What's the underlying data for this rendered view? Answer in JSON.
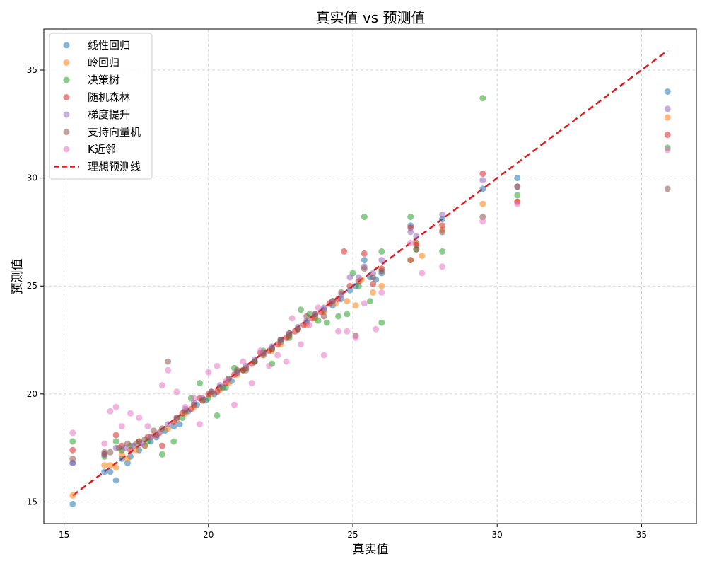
{
  "chart_data": {
    "type": "scatter",
    "title": "真实值 vs 预测值",
    "xlabel": "真实值",
    "ylabel": "预测值",
    "xlim": [
      14.3,
      36.9
    ],
    "ylim": [
      14.0,
      36.9
    ],
    "x_ticks": [
      15,
      20,
      25,
      30,
      35
    ],
    "y_ticks": [
      15,
      20,
      25,
      30,
      35
    ],
    "grid": true,
    "grid_style": "dashed",
    "legend_position": "top-left",
    "reference_line": {
      "name": "理想预测线",
      "from": [
        15.3,
        15.3
      ],
      "to": [
        35.9,
        35.9
      ],
      "color": "#e41a1c",
      "style": "dashed"
    },
    "series": [
      {
        "name": "线性回归",
        "color": "#1f77b4",
        "points": [
          [
            15.3,
            14.9
          ],
          [
            15.3,
            16.8
          ],
          [
            16.4,
            16.4
          ],
          [
            16.6,
            16.4
          ],
          [
            16.8,
            16.0
          ],
          [
            17.0,
            17.0
          ],
          [
            17.2,
            16.8
          ],
          [
            17.3,
            17.1
          ],
          [
            17.6,
            17.4
          ],
          [
            17.8,
            17.6
          ],
          [
            18.0,
            17.8
          ],
          [
            18.2,
            18.0
          ],
          [
            18.5,
            18.3
          ],
          [
            18.8,
            18.5
          ],
          [
            19.0,
            18.6
          ],
          [
            19.3,
            19.2
          ],
          [
            19.6,
            19.5
          ],
          [
            19.9,
            19.7
          ],
          [
            20.2,
            20.0
          ],
          [
            20.5,
            20.3
          ],
          [
            20.8,
            20.6
          ],
          [
            21.0,
            21.0
          ],
          [
            21.3,
            21.2
          ],
          [
            21.6,
            21.5
          ],
          [
            21.9,
            21.8
          ],
          [
            22.2,
            22.1
          ],
          [
            22.5,
            22.4
          ],
          [
            22.8,
            22.7
          ],
          [
            23.1,
            23.0
          ],
          [
            23.4,
            23.3
          ],
          [
            23.7,
            23.6
          ],
          [
            24.0,
            23.9
          ],
          [
            24.3,
            24.1
          ],
          [
            24.6,
            24.4
          ],
          [
            24.9,
            24.8
          ],
          [
            25.1,
            25.0
          ],
          [
            25.4,
            26.2
          ],
          [
            25.6,
            25.4
          ],
          [
            25.8,
            25.3
          ],
          [
            26.0,
            25.6
          ],
          [
            27.0,
            27.8
          ],
          [
            27.2,
            27.0
          ],
          [
            28.1,
            28.1
          ],
          [
            29.5,
            29.5
          ],
          [
            30.7,
            30.0
          ],
          [
            35.9,
            34.0
          ]
        ]
      },
      {
        "name": "岭回归",
        "color": "#ff7f0e",
        "points": [
          [
            15.3,
            15.3
          ],
          [
            16.4,
            16.7
          ],
          [
            16.6,
            16.7
          ],
          [
            16.8,
            16.6
          ],
          [
            17.0,
            17.2
          ],
          [
            17.2,
            17.0
          ],
          [
            17.5,
            17.4
          ],
          [
            17.8,
            17.6
          ],
          [
            18.0,
            18.0
          ],
          [
            18.3,
            18.2
          ],
          [
            18.6,
            18.4
          ],
          [
            18.9,
            18.8
          ],
          [
            19.2,
            19.1
          ],
          [
            19.5,
            19.4
          ],
          [
            19.8,
            19.7
          ],
          [
            20.1,
            20.0
          ],
          [
            20.4,
            20.2
          ],
          [
            20.7,
            20.5
          ],
          [
            21.0,
            20.9
          ],
          [
            21.3,
            21.2
          ],
          [
            21.6,
            21.5
          ],
          [
            21.9,
            21.8
          ],
          [
            22.2,
            22.0
          ],
          [
            22.5,
            22.3
          ],
          [
            22.8,
            22.7
          ],
          [
            23.1,
            23.0
          ],
          [
            23.4,
            23.2
          ],
          [
            23.7,
            23.5
          ],
          [
            24.0,
            23.8
          ],
          [
            24.4,
            24.2
          ],
          [
            24.8,
            24.3
          ],
          [
            25.1,
            24.1
          ],
          [
            25.3,
            25.3
          ],
          [
            25.7,
            24.7
          ],
          [
            26.0,
            25.0
          ],
          [
            27.0,
            26.2
          ],
          [
            27.2,
            27.0
          ],
          [
            27.4,
            26.4
          ],
          [
            28.1,
            27.6
          ],
          [
            29.5,
            28.8
          ],
          [
            30.7,
            28.9
          ],
          [
            35.9,
            32.8
          ]
        ]
      },
      {
        "name": "决策树",
        "color": "#2ca02c",
        "points": [
          [
            15.3,
            17.8
          ],
          [
            16.4,
            17.1
          ],
          [
            16.8,
            17.8
          ],
          [
            17.0,
            17.4
          ],
          [
            17.3,
            17.6
          ],
          [
            17.6,
            17.8
          ],
          [
            17.9,
            17.8
          ],
          [
            18.4,
            17.2
          ],
          [
            18.8,
            17.8
          ],
          [
            19.1,
            18.9
          ],
          [
            19.4,
            19.8
          ],
          [
            19.7,
            20.5
          ],
          [
            20.0,
            19.8
          ],
          [
            20.3,
            19.0
          ],
          [
            20.6,
            20.3
          ],
          [
            20.9,
            21.2
          ],
          [
            21.2,
            21.1
          ],
          [
            21.6,
            21.5
          ],
          [
            21.9,
            22.0
          ],
          [
            22.2,
            21.4
          ],
          [
            22.5,
            22.5
          ],
          [
            22.8,
            22.6
          ],
          [
            23.2,
            23.9
          ],
          [
            23.5,
            23.7
          ],
          [
            23.8,
            23.4
          ],
          [
            24.1,
            23.3
          ],
          [
            24.5,
            23.6
          ],
          [
            24.8,
            23.7
          ],
          [
            25.0,
            25.6
          ],
          [
            25.2,
            25.0
          ],
          [
            25.4,
            28.2
          ],
          [
            25.6,
            24.3
          ],
          [
            26.0,
            23.3
          ],
          [
            26.0,
            26.6
          ],
          [
            27.0,
            28.2
          ],
          [
            27.2,
            26.7
          ],
          [
            28.1,
            26.6
          ],
          [
            29.5,
            33.7
          ],
          [
            30.7,
            29.2
          ],
          [
            35.9,
            31.4
          ]
        ]
      },
      {
        "name": "随机森林",
        "color": "#d62728",
        "points": [
          [
            15.3,
            17.4
          ],
          [
            16.4,
            17.2
          ],
          [
            16.8,
            18.1
          ],
          [
            17.0,
            17.6
          ],
          [
            17.3,
            17.4
          ],
          [
            17.6,
            17.8
          ],
          [
            17.9,
            18.0
          ],
          [
            18.2,
            18.1
          ],
          [
            18.4,
            17.6
          ],
          [
            18.8,
            18.7
          ],
          [
            19.1,
            19.1
          ],
          [
            19.4,
            19.3
          ],
          [
            19.7,
            19.8
          ],
          [
            20.0,
            20.0
          ],
          [
            20.3,
            20.1
          ],
          [
            20.6,
            20.5
          ],
          [
            20.9,
            20.9
          ],
          [
            21.2,
            21.1
          ],
          [
            21.5,
            21.4
          ],
          [
            21.8,
            21.9
          ],
          [
            22.1,
            22.0
          ],
          [
            22.4,
            22.3
          ],
          [
            22.7,
            22.6
          ],
          [
            23.0,
            22.9
          ],
          [
            23.3,
            23.2
          ],
          [
            23.6,
            23.5
          ],
          [
            23.9,
            23.8
          ],
          [
            24.2,
            24.2
          ],
          [
            24.5,
            24.4
          ],
          [
            24.7,
            26.6
          ],
          [
            24.9,
            25.0
          ],
          [
            25.2,
            25.2
          ],
          [
            25.4,
            26.5
          ],
          [
            25.7,
            25.1
          ],
          [
            26.0,
            25.8
          ],
          [
            27.0,
            27.7
          ],
          [
            27.2,
            26.9
          ],
          [
            28.1,
            27.8
          ],
          [
            29.5,
            30.2
          ],
          [
            30.7,
            28.9
          ],
          [
            35.9,
            32.0
          ]
        ]
      },
      {
        "name": "梯度提升",
        "color": "#9467bd",
        "points": [
          [
            15.3,
            16.8
          ],
          [
            16.4,
            17.2
          ],
          [
            16.8,
            17.5
          ],
          [
            17.1,
            17.5
          ],
          [
            17.4,
            17.6
          ],
          [
            17.7,
            17.7
          ],
          [
            18.0,
            18.0
          ],
          [
            18.3,
            18.2
          ],
          [
            18.6,
            18.6
          ],
          [
            18.9,
            18.9
          ],
          [
            19.2,
            19.3
          ],
          [
            19.5,
            19.6
          ],
          [
            19.8,
            19.8
          ],
          [
            20.1,
            20.1
          ],
          [
            20.4,
            20.4
          ],
          [
            20.7,
            20.7
          ],
          [
            21.0,
            21.0
          ],
          [
            21.3,
            21.3
          ],
          [
            21.6,
            21.6
          ],
          [
            21.9,
            21.9
          ],
          [
            22.2,
            22.2
          ],
          [
            22.5,
            22.5
          ],
          [
            22.8,
            22.8
          ],
          [
            23.1,
            23.1
          ],
          [
            23.4,
            23.4
          ],
          [
            23.7,
            23.7
          ],
          [
            24.0,
            24.0
          ],
          [
            24.3,
            24.3
          ],
          [
            24.6,
            24.6
          ],
          [
            24.9,
            25.4
          ],
          [
            25.2,
            25.4
          ],
          [
            25.4,
            25.9
          ],
          [
            25.7,
            25.6
          ],
          [
            26.0,
            26.2
          ],
          [
            27.0,
            27.5
          ],
          [
            27.2,
            27.3
          ],
          [
            28.1,
            28.3
          ],
          [
            29.5,
            29.9
          ],
          [
            30.7,
            29.6
          ],
          [
            35.9,
            33.2
          ]
        ]
      },
      {
        "name": "支持向量机",
        "color": "#8c564b",
        "points": [
          [
            15.3,
            17.0
          ],
          [
            16.4,
            17.3
          ],
          [
            16.6,
            17.3
          ],
          [
            16.9,
            17.5
          ],
          [
            17.2,
            17.7
          ],
          [
            17.5,
            17.7
          ],
          [
            17.8,
            17.9
          ],
          [
            18.1,
            18.3
          ],
          [
            18.4,
            18.4
          ],
          [
            18.6,
            21.5
          ],
          [
            18.9,
            18.9
          ],
          [
            19.2,
            19.2
          ],
          [
            19.5,
            19.5
          ],
          [
            19.8,
            19.7
          ],
          [
            20.1,
            20.1
          ],
          [
            20.4,
            20.3
          ],
          [
            20.7,
            20.7
          ],
          [
            21.0,
            21.1
          ],
          [
            21.3,
            21.1
          ],
          [
            21.6,
            21.5
          ],
          [
            21.9,
            21.9
          ],
          [
            22.2,
            22.1
          ],
          [
            22.5,
            22.5
          ],
          [
            22.8,
            22.8
          ],
          [
            23.1,
            23.0
          ],
          [
            23.4,
            23.6
          ],
          [
            23.7,
            23.7
          ],
          [
            24.0,
            23.6
          ],
          [
            24.3,
            24.3
          ],
          [
            24.6,
            24.7
          ],
          [
            25.1,
            22.7
          ],
          [
            25.4,
            25.8
          ],
          [
            25.7,
            25.4
          ],
          [
            26.0,
            25.7
          ],
          [
            27.0,
            26.2
          ],
          [
            27.2,
            26.7
          ],
          [
            28.1,
            27.5
          ],
          [
            29.5,
            28.2
          ],
          [
            30.7,
            29.6
          ],
          [
            35.9,
            29.5
          ]
        ]
      },
      {
        "name": "K近邻",
        "color": "#e377c2",
        "points": [
          [
            15.3,
            18.2
          ],
          [
            16.4,
            17.7
          ],
          [
            16.6,
            19.2
          ],
          [
            16.8,
            19.4
          ],
          [
            17.0,
            18.5
          ],
          [
            17.3,
            19.1
          ],
          [
            17.6,
            18.9
          ],
          [
            17.9,
            18.5
          ],
          [
            18.4,
            20.4
          ],
          [
            18.6,
            21.1
          ],
          [
            18.9,
            20.1
          ],
          [
            19.2,
            19.4
          ],
          [
            19.5,
            19.8
          ],
          [
            19.7,
            18.6
          ],
          [
            20.0,
            21.0
          ],
          [
            20.3,
            21.3
          ],
          [
            20.6,
            20.6
          ],
          [
            20.9,
            19.5
          ],
          [
            21.2,
            21.5
          ],
          [
            21.5,
            20.5
          ],
          [
            21.8,
            22.0
          ],
          [
            22.1,
            21.3
          ],
          [
            22.4,
            21.8
          ],
          [
            22.7,
            21.5
          ],
          [
            22.9,
            23.5
          ],
          [
            23.2,
            22.3
          ],
          [
            23.5,
            23.2
          ],
          [
            23.8,
            24.0
          ],
          [
            24.0,
            21.8
          ],
          [
            24.5,
            22.9
          ],
          [
            24.8,
            22.9
          ],
          [
            25.1,
            22.6
          ],
          [
            25.4,
            24.2
          ],
          [
            25.8,
            23.0
          ],
          [
            26.0,
            24.7
          ],
          [
            27.0,
            27.0
          ],
          [
            27.4,
            25.6
          ],
          [
            28.1,
            25.9
          ],
          [
            29.5,
            28.0
          ],
          [
            30.7,
            28.8
          ],
          [
            35.9,
            31.3
          ]
        ]
      }
    ]
  }
}
